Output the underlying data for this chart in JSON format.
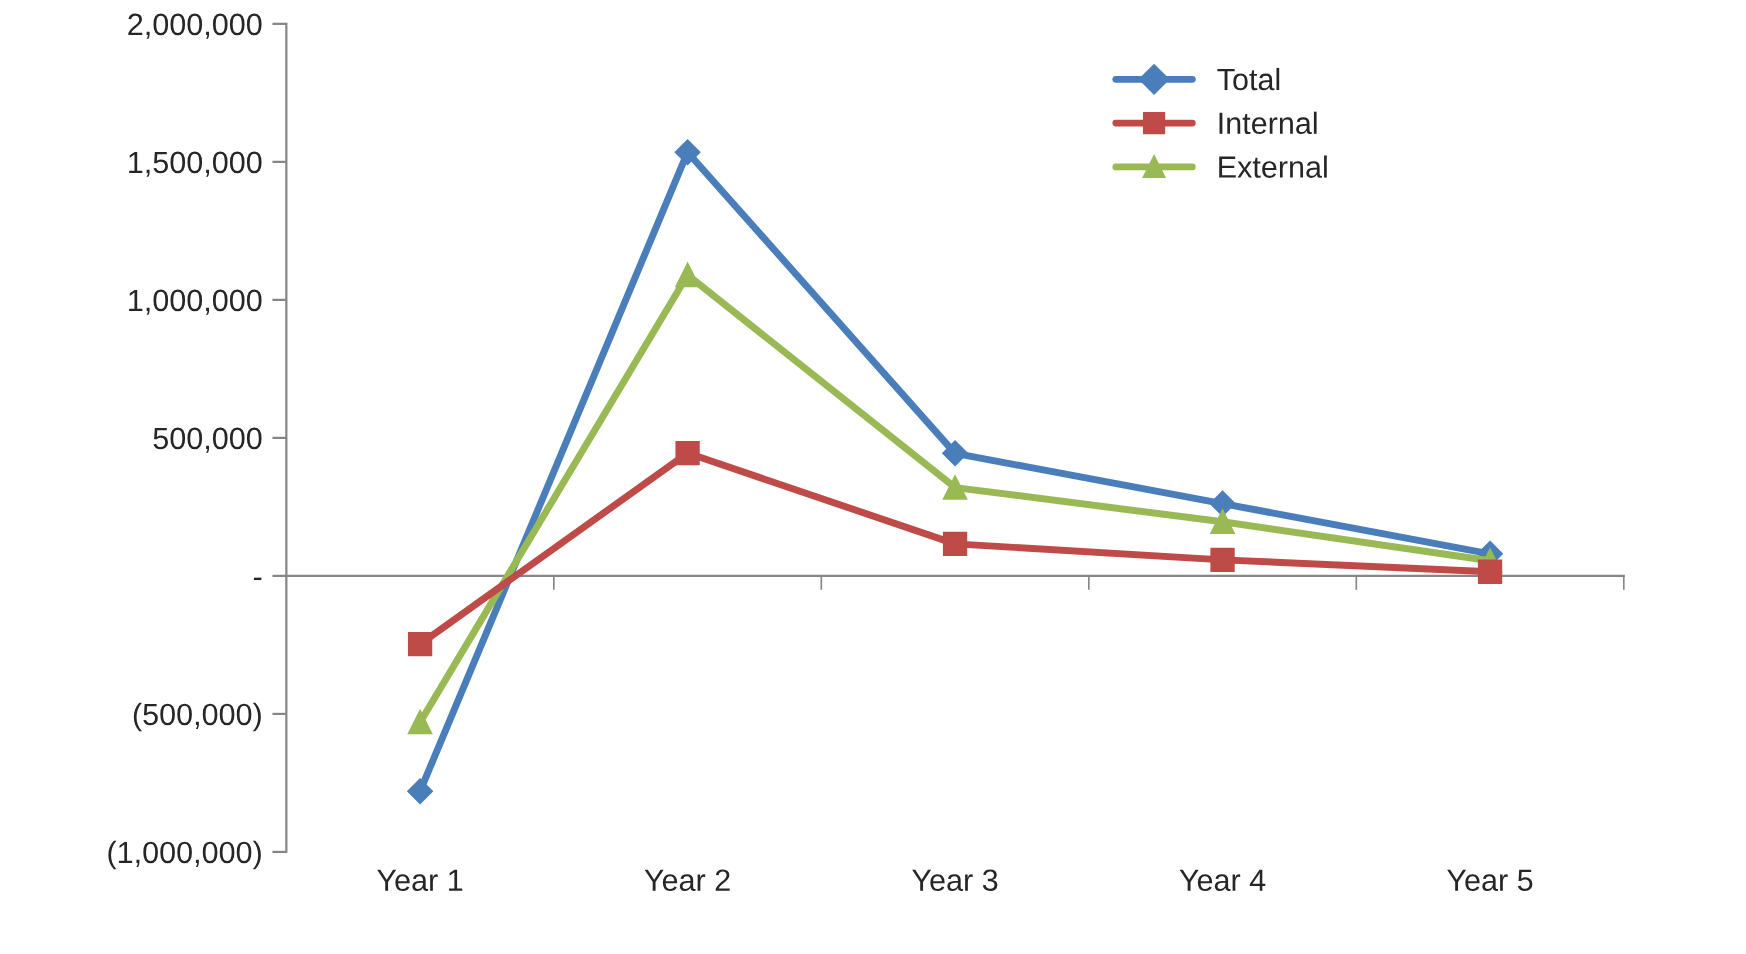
{
  "chart_data": {
    "type": "line",
    "categories": [
      "Year 1",
      "Year 2",
      "Year 3",
      "Year 4",
      "Year 5"
    ],
    "series": [
      {
        "name": "Total",
        "color": "#4a7ebb",
        "marker": "diamond",
        "values": [
          -780000,
          1535000,
          444000,
          262000,
          80000
        ]
      },
      {
        "name": "Internal",
        "color": "#be4b48",
        "marker": "square",
        "values": [
          -247000,
          445000,
          116000,
          58000,
          15000
        ]
      },
      {
        "name": "External",
        "color": "#98b954",
        "marker": "triangle",
        "values": [
          -530000,
          1090000,
          320000,
          196000,
          55000
        ]
      }
    ],
    "ylim": [
      -1000000,
      2000000
    ],
    "yticks": [
      {
        "value": -1000000,
        "label": "(1,000,000)"
      },
      {
        "value": -500000,
        "label": "(500,000)"
      },
      {
        "value": 0,
        "label": "-"
      },
      {
        "value": 500000,
        "label": "500,000"
      },
      {
        "value": 1000000,
        "label": "1,000,000"
      },
      {
        "value": 1500000,
        "label": "1,500,000"
      },
      {
        "value": 2000000,
        "label": "2,000,000"
      }
    ],
    "legend": "top right",
    "line_style": "solid"
  }
}
